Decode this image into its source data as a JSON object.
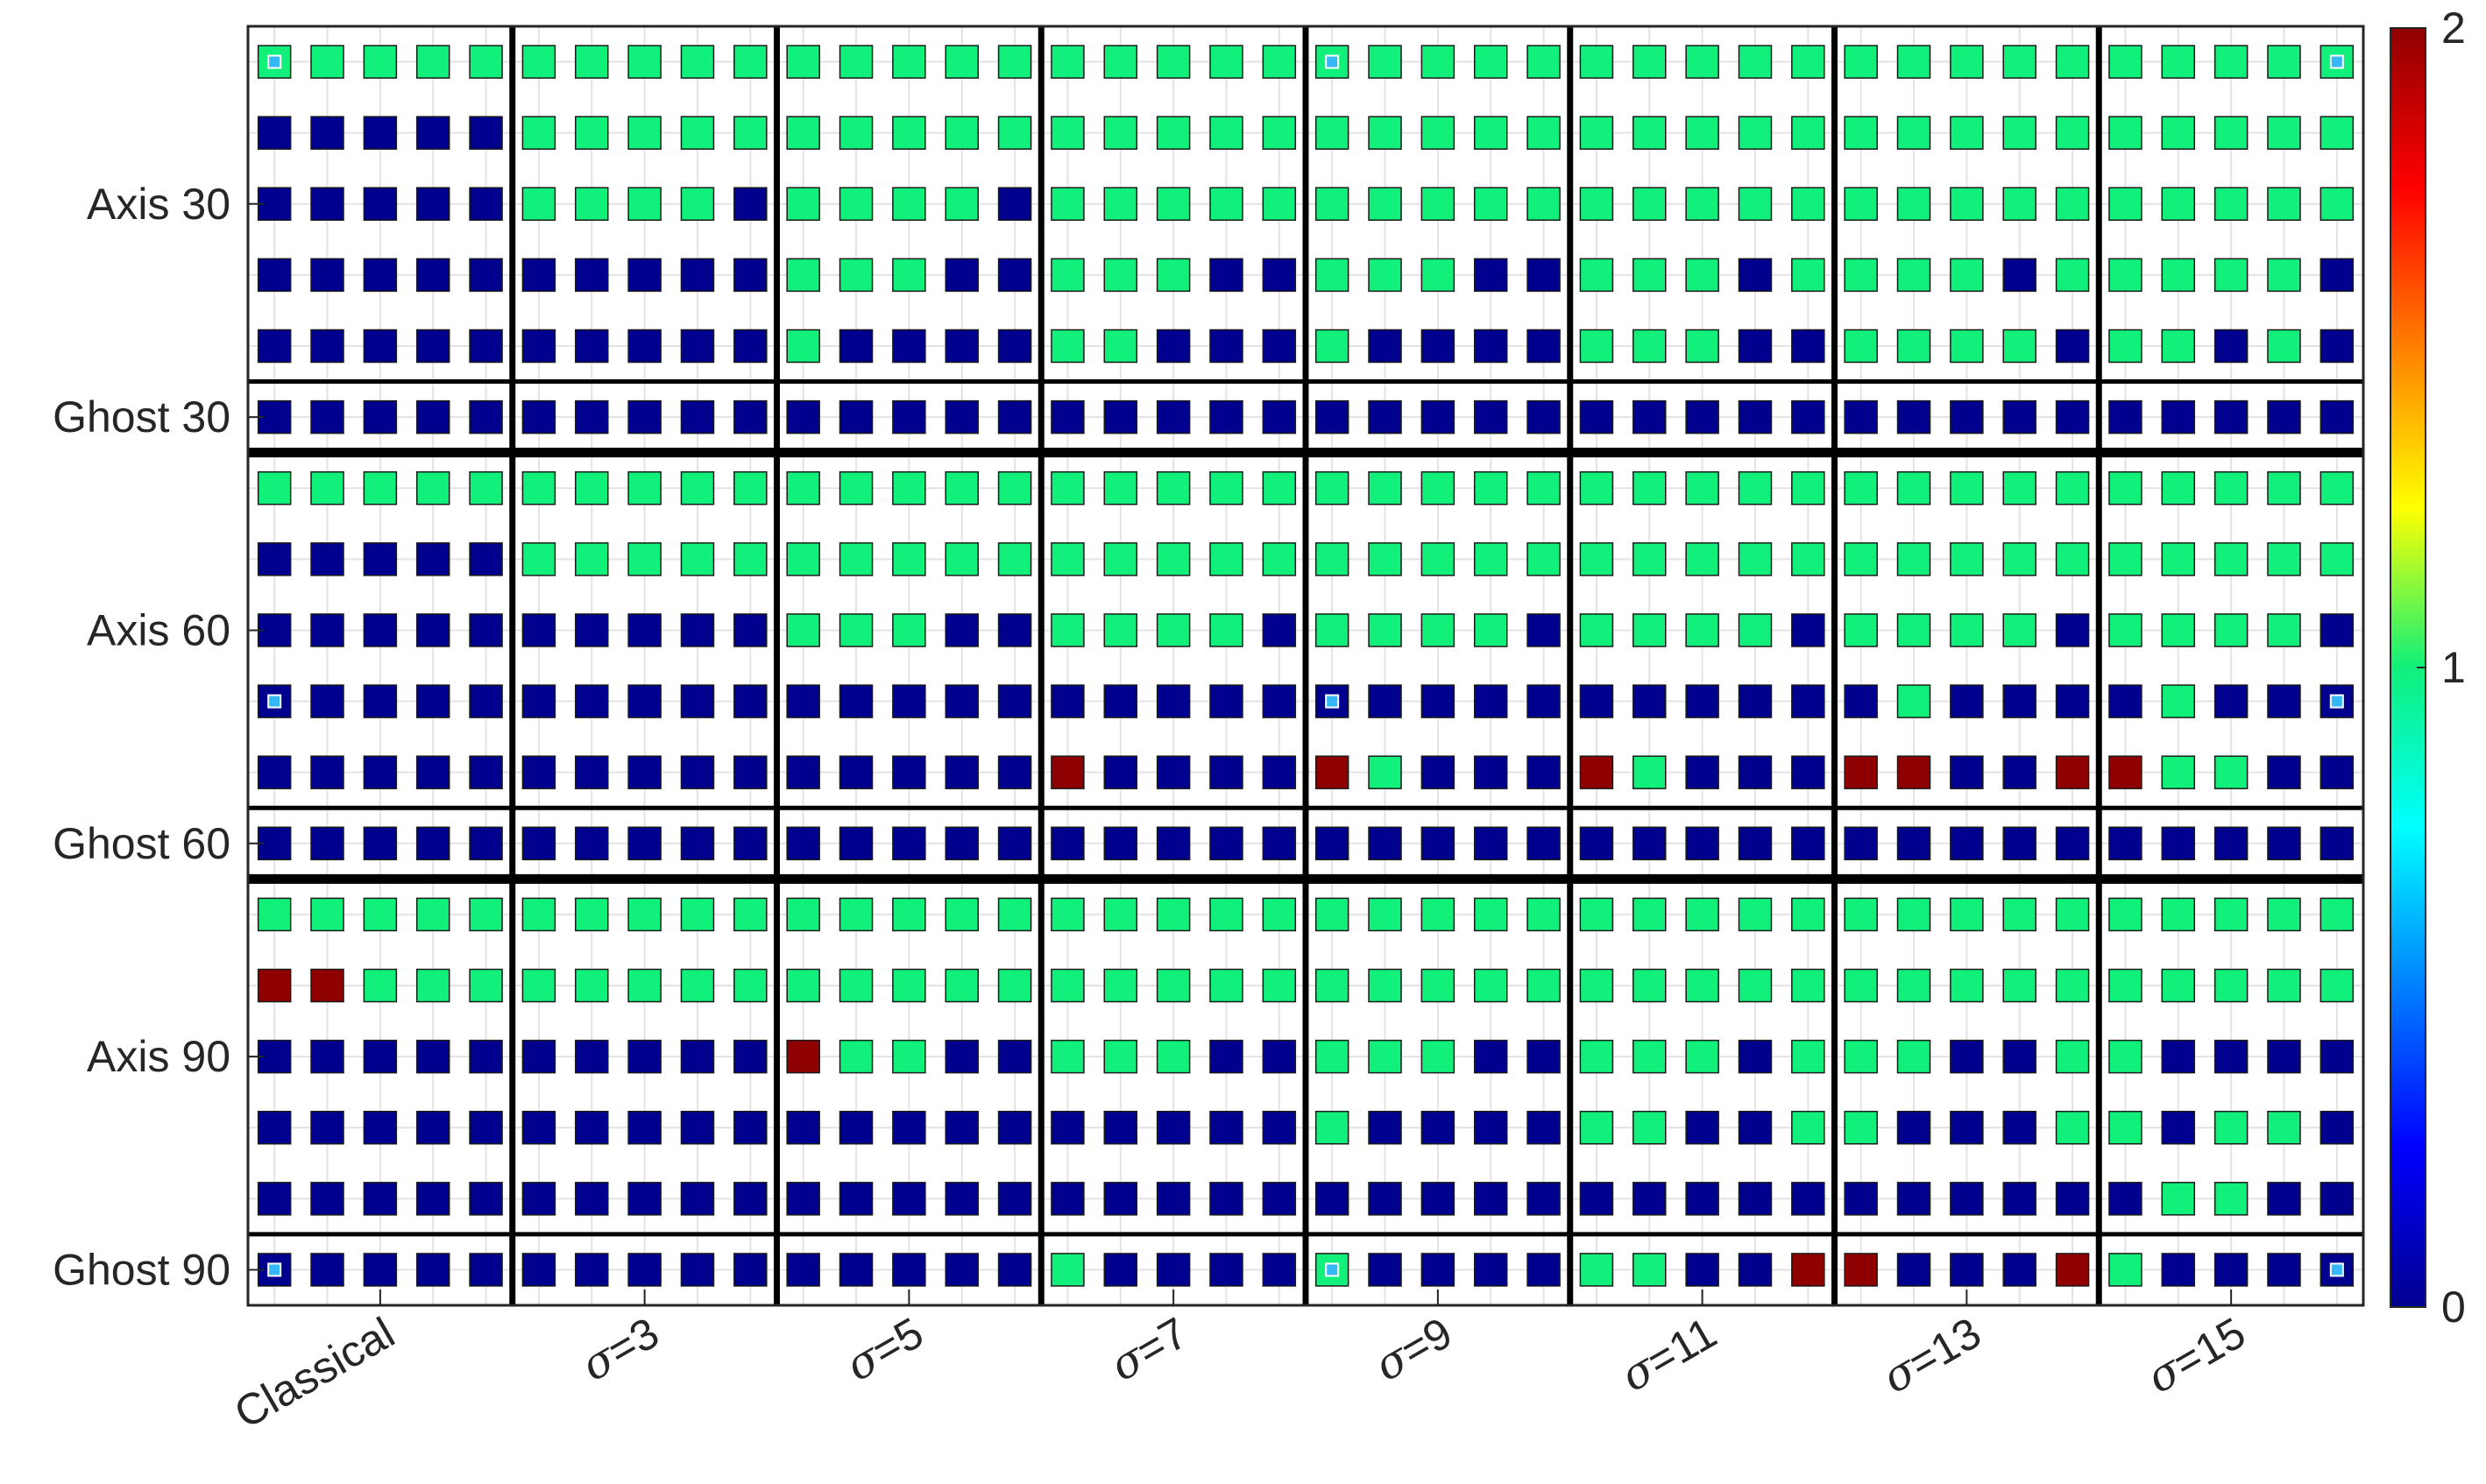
{
  "chart_data": {
    "type": "heatmap",
    "title": "",
    "xlabel": "",
    "ylabel": "",
    "x_groups": [
      "Classical",
      "σ=3",
      "σ=5",
      "σ=7",
      "σ=9",
      "σ=11",
      "σ=13",
      "σ=15"
    ],
    "columns_per_group": 5,
    "row_groups": [
      {
        "label": "Axis 30",
        "rows": 5
      },
      {
        "label": "Ghost 30",
        "rows": 1
      },
      {
        "label": "Axis 60",
        "rows": 5
      },
      {
        "label": "Ghost 60",
        "rows": 1
      },
      {
        "label": "Axis 90",
        "rows": 5
      },
      {
        "label": "Ghost 90",
        "rows": 1
      }
    ],
    "colorbar": {
      "colormap": "jet",
      "range": [
        0,
        2
      ],
      "ticks": [
        "0",
        "1",
        "2"
      ]
    },
    "grid": true,
    "values": [
      "1111111111111111111111111111111111111111",
      "0000011111111111111111111111111111111111",
      "0000011110111101111111111111111111111111",
      "0000000000111001110011100111011110111110",
      "0000000000100001100010000111001111011010",
      "0000000000000000000000000000000000000000",
      "1111111111111111111111111111111111111111",
      "0000011111111111111111111111111111111111",
      "0000000000111001111011110111101111011110",
      "0000000000000000000000000000000100001000",
      "0000000000000002000021000210002200221100",
      "0000000000000000000000000000000000000000",
      "1111111111111111111111111111111111111111",
      "2211111111111111111111111111111111111111",
      "0000000000211001110011100111011100110000",
      "0000000000000000000010000110011000110110",
      "0000000000000000000000000000000000001100",
      "0000000000000001000010000110022000210000"
    ],
    "marked_cells": [
      [
        0,
        0
      ],
      [
        0,
        20
      ],
      [
        0,
        39
      ],
      [
        9,
        0
      ],
      [
        9,
        20
      ],
      [
        9,
        39
      ],
      [
        17,
        0
      ],
      [
        17,
        20
      ],
      [
        17,
        39
      ]
    ],
    "colors": {
      "low": "#00008f",
      "mid": "#10f07a",
      "high": "#8f0000",
      "marker": "#36b8f8"
    }
  }
}
